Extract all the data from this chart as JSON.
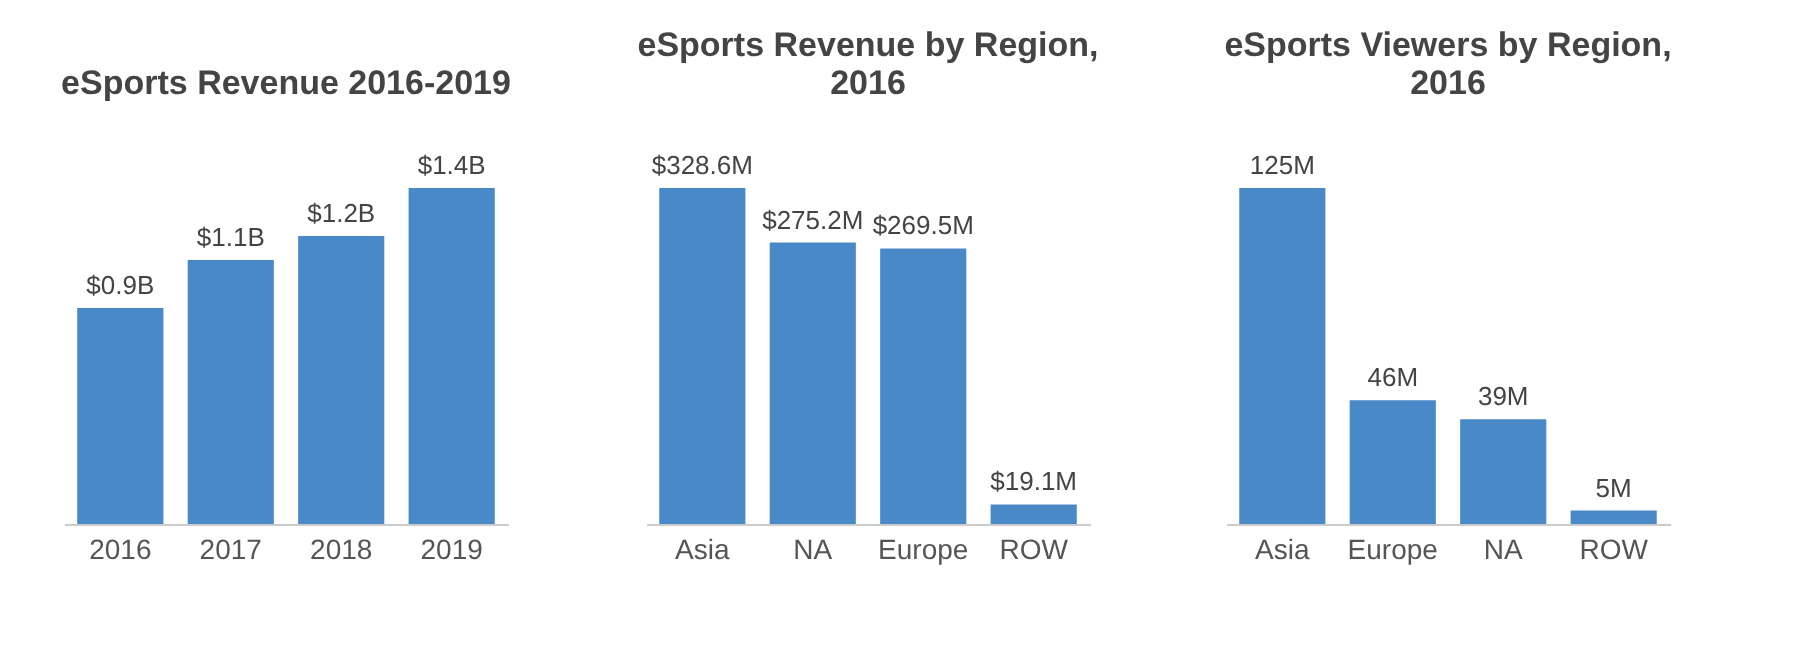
{
  "chart_data": [
    {
      "type": "bar",
      "title": "eSports Revenue 2016-2019",
      "categories": [
        "2016",
        "2017",
        "2018",
        "2019"
      ],
      "values": [
        0.9,
        1.1,
        1.2,
        1.4
      ],
      "value_labels": [
        "$0.9B",
        "$1.1B",
        "$1.2B",
        "$1.4B"
      ],
      "color": "#4a89c8",
      "tick_labels": "x"
    },
    {
      "type": "bar",
      "title": "eSports Revenue by Region, 2016",
      "categories": [
        "Asia",
        "NA",
        "Europe",
        "ROW"
      ],
      "values": [
        328.6,
        275.2,
        269.5,
        19.1
      ],
      "value_labels": [
        "$328.6M",
        "$275.2M",
        "$269.5M",
        "$19.1M"
      ],
      "color": "#4a89c8",
      "tick_labels": "x"
    },
    {
      "type": "bar",
      "title": "eSports Viewers by Region, 2016",
      "categories": [
        "Asia",
        "Europe",
        "NA",
        "ROW"
      ],
      "values": [
        125,
        46,
        39,
        5
      ],
      "value_labels": [
        "125M",
        "46M",
        "39M",
        "5M"
      ],
      "color": "#4a89c8",
      "tick_labels": "x"
    }
  ]
}
